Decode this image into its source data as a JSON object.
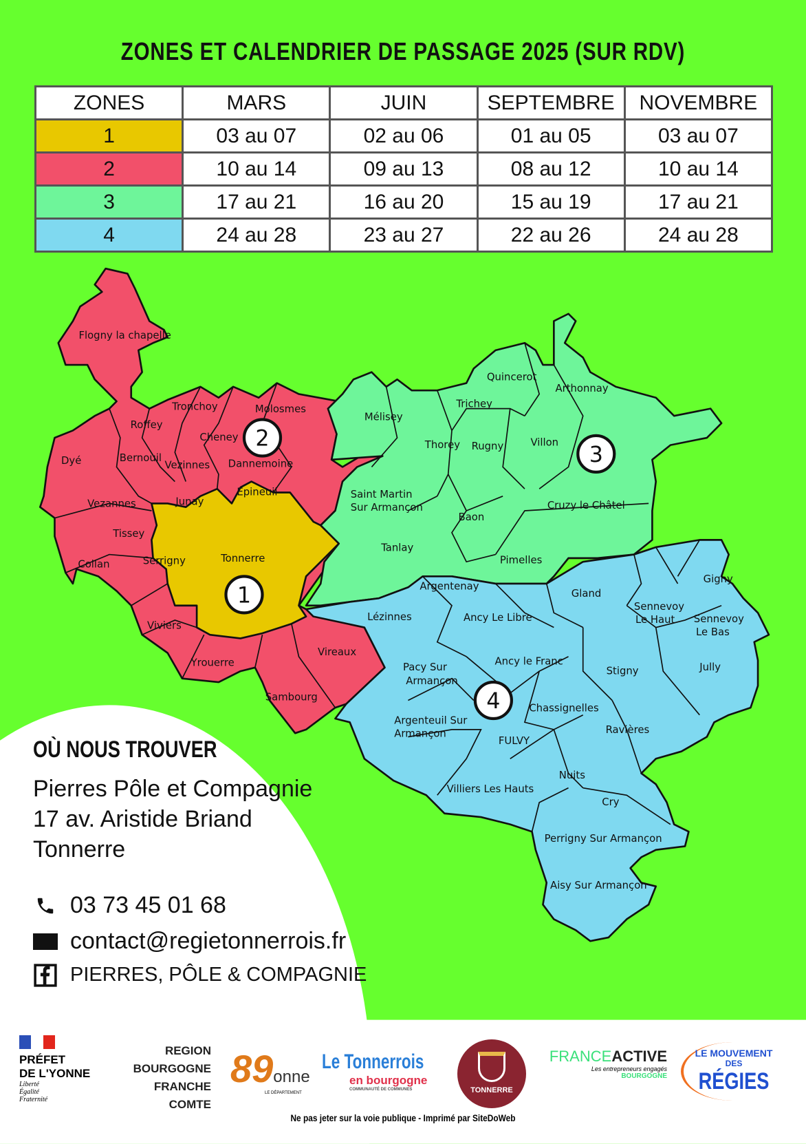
{
  "title": "ZONES ET CALENDRIER DE PASSAGE 2025 (SUR RDV)",
  "table": {
    "headers": [
      "ZONES",
      "MARS",
      "JUIN",
      "SEPTEMBRE",
      "NOVEMBRE"
    ],
    "rows": [
      {
        "zone": "1",
        "color": "#e8c800",
        "cells": [
          "03 au 07",
          "02 au 06",
          "01 au 05",
          "03 au 07"
        ]
      },
      {
        "zone": "2",
        "color": "#f2506a",
        "cells": [
          "10 au 14",
          "09 au 13",
          "08 au 12",
          "10 au 14"
        ]
      },
      {
        "zone": "3",
        "color": "#6ef59a",
        "cells": [
          "17 au 21",
          "16 au 20",
          "15 au 19",
          "17 au 21"
        ]
      },
      {
        "zone": "4",
        "color": "#7fd9f0",
        "cells": [
          "24 au 28",
          "23 au 27",
          "22 au 26",
          "24 au 28"
        ]
      }
    ]
  },
  "map": {
    "zone_numbers": [
      "1",
      "2",
      "3",
      "4"
    ],
    "communes": {
      "zone1": [
        "Tonnerre"
      ],
      "zone2": [
        "Flogny la chapelle",
        "Roffey",
        "Tronchoy",
        "Molosmes",
        "Cheney",
        "Dyé",
        "Bernouil",
        "Vezinnes",
        "Dannemoine",
        "Epineuil",
        "Junay",
        "Vezannes",
        "Tissey",
        "Collan",
        "Serrigny",
        "Viviers",
        "Yrouerre",
        "Vireaux",
        "Sambourg"
      ],
      "zone3": [
        "Mélisey",
        "Quincerot",
        "Arthonnay",
        "Trichey",
        "Thorey",
        "Rugny",
        "Villon",
        "Saint Martin",
        "Sur Armançon",
        "Baon",
        "Cruzy le Châtel",
        "Tanlay",
        "Pimelles"
      ],
      "zone4": [
        "Argentenay",
        "Lézinnes",
        "Ancy  Le Libre",
        "Gland",
        "Sennevoy",
        "Le Haut",
        "Gigny",
        "Sennevoy",
        "Le Bas",
        "Ancy le Franc",
        "Pacy Sur",
        "Armançon",
        "Stigny",
        "Jully",
        "Chassignelles",
        "Ravières",
        "Argenteuil  Sur",
        "Armançon",
        "FULVY",
        "Nuits",
        "Villiers Les Hauts",
        "Cry",
        "Perrigny Sur Armançon",
        "Aisy Sur Armançon"
      ]
    }
  },
  "contact": {
    "heading": "OÙ NOUS TROUVER",
    "address": [
      "Pierres Pôle et Compagnie",
      "17 av. Aristide Briand",
      "Tonnerre"
    ],
    "phone": "03 73 45 01 68",
    "email": "contact@regietonnerrois.fr",
    "facebook": "PIERRES, PÔLE & COMPAGNIE"
  },
  "logos": {
    "prefet": [
      "PRÉFET",
      "DE L'YONNE",
      "Liberté",
      "Égalité",
      "Fraternité"
    ],
    "region": [
      "REGION",
      "BOURGOGNE",
      "FRANCHE",
      "COMTE"
    ],
    "yonne": [
      "89",
      "onne",
      "LE DÉPARTEMENT"
    ],
    "tonnerrois": [
      "Le Tonnerrois",
      "en bourgogne",
      "COMMUNAUTÉ DE COMMUNES"
    ],
    "tonnerre": "TONNERRE",
    "franceactive": [
      "FRANCE",
      "ACTIVE",
      "Les entrepreneurs engagés",
      "BOURGOGNE"
    ],
    "regies": [
      "LE MOUVEMENT",
      "DES",
      "RÉGIES"
    ]
  },
  "footer": "Ne pas jeter sur la voie publique - Imprimé par SiteDoWeb"
}
